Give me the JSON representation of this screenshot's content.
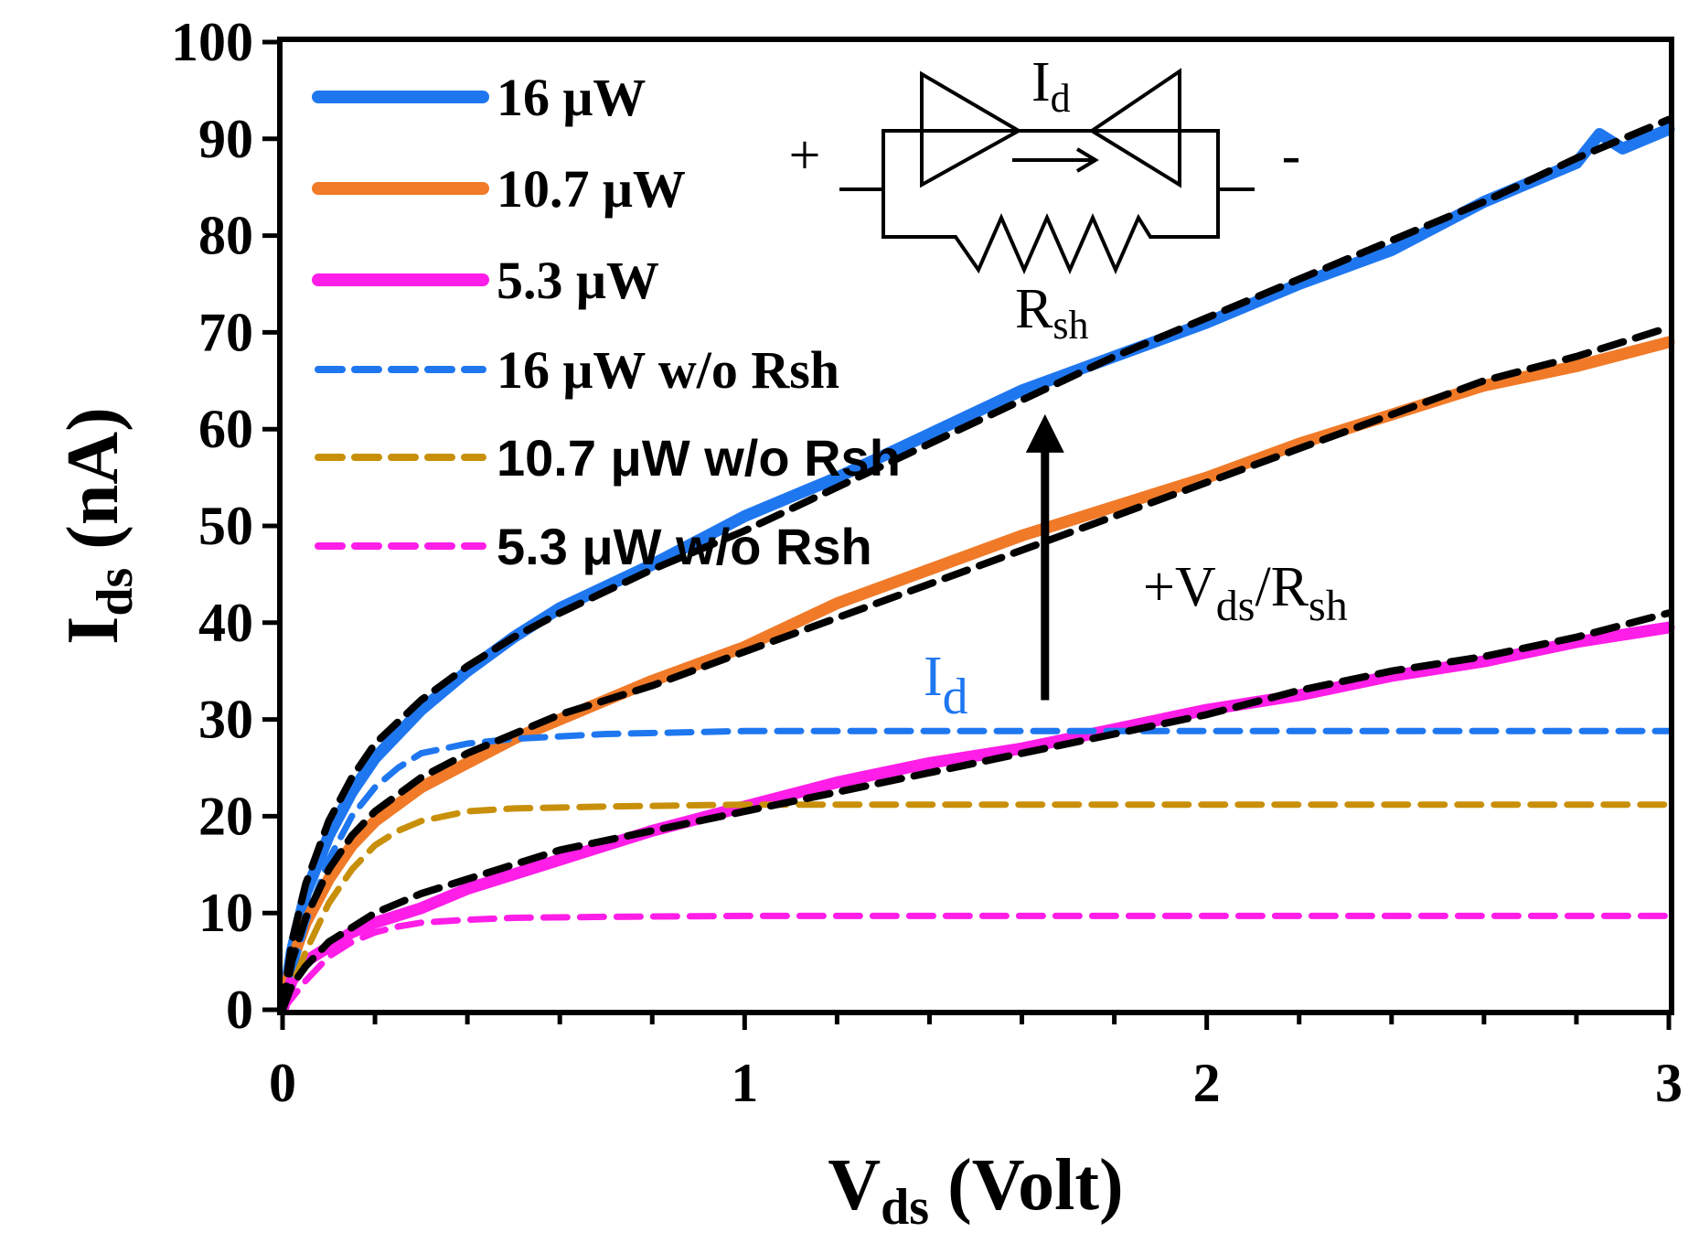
{
  "chart_data": {
    "type": "line",
    "title": "",
    "xlabel": {
      "main": "V",
      "sub": "ds",
      "rest": " (Volt)"
    },
    "ylabel": {
      "main": "I",
      "sub": "ds",
      "rest": " (nA)"
    },
    "xlim": [
      0,
      3
    ],
    "ylim": [
      0,
      100
    ],
    "xticks": [
      0,
      1,
      2,
      3
    ],
    "yticks": [
      0,
      10,
      20,
      30,
      40,
      50,
      60,
      70,
      80,
      90,
      100
    ],
    "xtick_labels": [
      "0",
      "1",
      "2",
      "3"
    ],
    "ytick_labels": [
      "0",
      "10",
      "20",
      "30",
      "40",
      "50",
      "60",
      "70",
      "80",
      "90",
      "100"
    ],
    "x_minor_step": 0.2,
    "grid": false,
    "legend_position": "top-left",
    "series": [
      {
        "name": "16 μW",
        "style": "solid",
        "color": "#1f77f0",
        "x": [
          0,
          0.02,
          0.05,
          0.1,
          0.15,
          0.2,
          0.3,
          0.4,
          0.5,
          0.6,
          0.8,
          1.0,
          1.2,
          1.4,
          1.6,
          1.8,
          2.0,
          2.2,
          2.4,
          2.6,
          2.8,
          2.85,
          2.9,
          3.0
        ],
        "y": [
          0,
          6,
          12,
          18,
          22.5,
          26,
          31,
          35,
          38.5,
          41.5,
          46,
          51,
          55,
          59.5,
          64,
          67.5,
          71,
          75,
          78.5,
          83.5,
          87.5,
          90.5,
          89,
          91
        ]
      },
      {
        "name": "10.7 μW",
        "style": "solid",
        "color": "#f07a28",
        "x": [
          0,
          0.02,
          0.05,
          0.1,
          0.15,
          0.2,
          0.3,
          0.4,
          0.5,
          0.6,
          0.8,
          1.0,
          1.2,
          1.4,
          1.6,
          1.8,
          2.0,
          2.2,
          2.4,
          2.6,
          2.8,
          3.0
        ],
        "y": [
          0,
          5,
          9,
          13.5,
          17,
          19.5,
          23,
          25.5,
          28,
          30,
          34,
          37.5,
          42,
          45.5,
          49,
          52,
          55,
          58.5,
          61.5,
          64.5,
          66.5,
          69
        ]
      },
      {
        "name": "5.3 μW",
        "style": "solid",
        "color": "#ff1de8",
        "x": [
          0,
          0.02,
          0.05,
          0.1,
          0.15,
          0.2,
          0.3,
          0.4,
          0.5,
          0.6,
          0.8,
          1.0,
          1.2,
          1.4,
          1.6,
          1.8,
          2.0,
          2.2,
          2.4,
          2.6,
          2.8,
          3.0
        ],
        "y": [
          0,
          3,
          5,
          6.5,
          8,
          9,
          10.5,
          12.5,
          14,
          15.5,
          18.5,
          21,
          23.5,
          25.5,
          27,
          29,
          31,
          32.5,
          34.5,
          36,
          38,
          39.5
        ]
      },
      {
        "name": "16 μW w/o Rsh",
        "style": "dashed",
        "color": "#1f77f0",
        "x": [
          0,
          0.05,
          0.1,
          0.15,
          0.2,
          0.25,
          0.3,
          0.4,
          0.5,
          0.7,
          1.0,
          1.5,
          2.0,
          2.5,
          3.0
        ],
        "y": [
          0,
          9,
          15.5,
          20,
          23,
          25,
          26.5,
          27.5,
          28,
          28.5,
          28.8,
          28.8,
          28.8,
          28.8,
          28.8
        ]
      },
      {
        "name": "10.7 μW w/o Rsh",
        "style": "dashed",
        "color": "#c8900a",
        "x": [
          0,
          0.05,
          0.1,
          0.15,
          0.2,
          0.25,
          0.3,
          0.4,
          0.5,
          0.7,
          1.0,
          1.5,
          2.0,
          2.5,
          3.0
        ],
        "y": [
          0,
          6,
          11,
          14.5,
          17,
          18.5,
          19.5,
          20.5,
          20.8,
          21,
          21.2,
          21.2,
          21.2,
          21.2,
          21.2
        ]
      },
      {
        "name": "5.3 μW w/o Rsh",
        "style": "dashed",
        "color": "#ff1de8",
        "x": [
          0,
          0.05,
          0.1,
          0.15,
          0.2,
          0.25,
          0.3,
          0.4,
          0.5,
          0.7,
          1.0,
          1.5,
          2.0,
          2.5,
          3.0
        ],
        "y": [
          0,
          3,
          5.5,
          7,
          8,
          8.6,
          9,
          9.3,
          9.5,
          9.6,
          9.7,
          9.7,
          9.7,
          9.7,
          9.7
        ]
      },
      {
        "name": "fit 16 μW",
        "style": "dashed",
        "color": "#000000",
        "in_legend": false,
        "x": [
          0,
          0.02,
          0.05,
          0.1,
          0.15,
          0.2,
          0.3,
          0.4,
          0.5,
          0.6,
          0.8,
          1.0,
          1.2,
          1.4,
          1.6,
          1.8,
          2.0,
          2.2,
          2.4,
          2.6,
          2.8,
          3.0
        ],
        "y": [
          0,
          7,
          13,
          19.5,
          24,
          27.5,
          32,
          35.5,
          38.5,
          41,
          45.5,
          49.5,
          54,
          58.5,
          63,
          67.5,
          71.5,
          75.5,
          79.5,
          83.5,
          88,
          92
        ]
      },
      {
        "name": "fit 10.7 μW",
        "style": "dashed",
        "color": "#000000",
        "in_legend": false,
        "x": [
          0,
          0.02,
          0.05,
          0.1,
          0.15,
          0.2,
          0.3,
          0.4,
          0.5,
          0.6,
          0.8,
          1.0,
          1.2,
          1.4,
          1.6,
          1.8,
          2.0,
          2.2,
          2.4,
          2.6,
          2.8,
          3.0
        ],
        "y": [
          0,
          5,
          9.5,
          14.5,
          18,
          20.5,
          24,
          26.5,
          28.5,
          30.5,
          33.5,
          37,
          40.5,
          44,
          47.5,
          51,
          54.5,
          58,
          61.5,
          65,
          67.5,
          70.5
        ]
      },
      {
        "name": "fit 5.3 μW",
        "style": "dashed",
        "color": "#000000",
        "in_legend": false,
        "x": [
          0,
          0.02,
          0.05,
          0.1,
          0.15,
          0.2,
          0.3,
          0.4,
          0.5,
          0.6,
          0.8,
          1.0,
          1.2,
          1.4,
          1.6,
          1.8,
          2.0,
          2.2,
          2.4,
          2.6,
          2.8,
          3.0
        ],
        "y": [
          0,
          2.5,
          4.5,
          7,
          8.5,
          10,
          12,
          13.5,
          15,
          16.5,
          18.5,
          20.5,
          22.5,
          24.5,
          26.5,
          28.5,
          30.5,
          33,
          35,
          36.5,
          38.5,
          41
        ]
      }
    ],
    "legend": [
      {
        "label": "16 μW",
        "style": "solid",
        "color": "#1f77f0",
        "font": "serif"
      },
      {
        "label": "10.7 μW",
        "style": "solid",
        "color": "#f07a28",
        "font": "serif"
      },
      {
        "label": "5.3 μW",
        "style": "solid",
        "color": "#ff1de8",
        "font": "serif"
      },
      {
        "label": "16 μW w/o Rsh",
        "style": "dashed",
        "color": "#1f77f0",
        "font": "serif"
      },
      {
        "label": "10.7 μW w/o Rsh",
        "style": "dashed",
        "color": "#c8900a",
        "font": "sans"
      },
      {
        "label": "5.3 μW w/o Rsh",
        "style": "dashed",
        "color": "#ff1de8",
        "font": "sans"
      }
    ],
    "annotations": {
      "circuit_plus": "+",
      "circuit_minus": "-",
      "circuit_current": {
        "main": "I",
        "sub": "d"
      },
      "circuit_resistor": {
        "main": "R",
        "sub": "sh"
      },
      "diode_current": {
        "main": "I",
        "sub": "d",
        "color": "#1f77f0"
      },
      "shunt_term": {
        "prefix": "+V",
        "sub1": "ds",
        "mid": "/R",
        "sub2": "sh"
      },
      "arrow": {
        "x": 1.65,
        "y_from": 32,
        "y_to": 62
      }
    }
  }
}
